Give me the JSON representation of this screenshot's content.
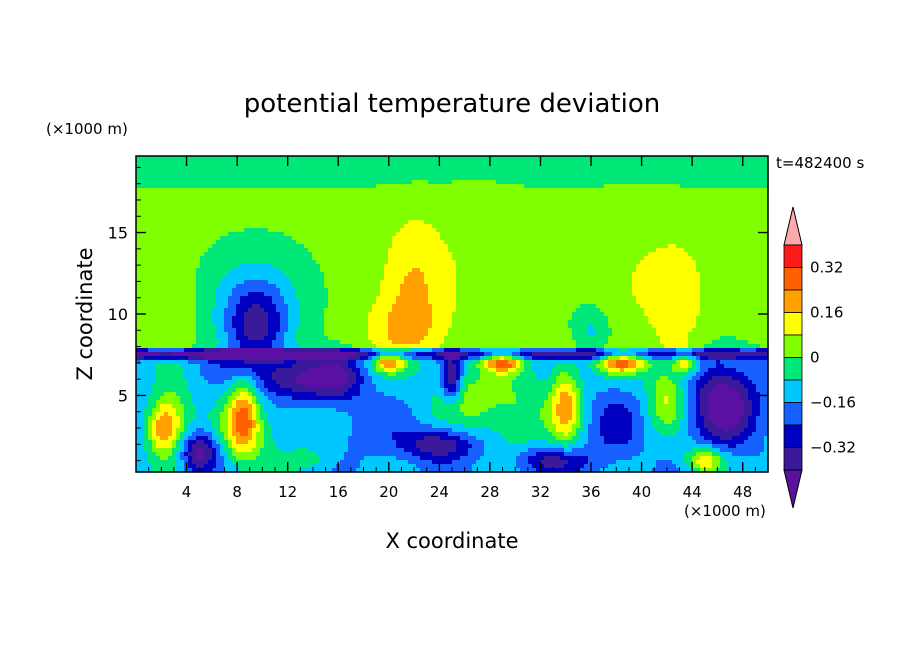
{
  "chart_data": {
    "type": "heatmap",
    "title": "potential temperature deviation",
    "xlabel": "X coordinate",
    "ylabel": "Z coordinate",
    "x_unit": "(×1000 m)",
    "y_unit": "(×1000 m)",
    "time_label": "t=482400 s",
    "xlim": [
      0,
      50
    ],
    "ylim": [
      0.3,
      19.7
    ],
    "x_ticks": [
      4,
      8,
      12,
      16,
      20,
      24,
      28,
      32,
      36,
      40,
      44,
      48
    ],
    "y_ticks": [
      5,
      10,
      15
    ],
    "colorbar": {
      "levels": [
        -0.4,
        -0.32,
        -0.24,
        -0.16,
        -0.08,
        0,
        0.08,
        0.16,
        0.24,
        0.32,
        0.4
      ],
      "tick_labels": [
        "0.32",
        "0.16",
        "0",
        "−0.16",
        "−0.32"
      ],
      "tick_values": [
        0.32,
        0.16,
        0,
        -0.16,
        -0.32
      ],
      "colors": [
        "#5a10a0",
        "#3a1a9a",
        "#0000c0",
        "#1560ff",
        "#00c8ff",
        "#00e878",
        "#80ff00",
        "#ffff00",
        "#ffa000",
        "#ff6000",
        "#ff1a1a",
        "#ffaaaa"
      ]
    },
    "inversion_layer_z": 7.5,
    "features": [
      {
        "x": 9.5,
        "z": 9,
        "value": -0.3,
        "sx": 2.5,
        "sz": 2.5
      },
      {
        "x": 9.5,
        "z": 11,
        "value": -0.14,
        "sx": 4,
        "sz": 3
      },
      {
        "x": 2.5,
        "z": 11,
        "value": 0.04,
        "sx": 2.5,
        "sz": 2
      },
      {
        "x": 2,
        "z": 3,
        "value": 0.28,
        "sx": 1.2,
        "sz": 1.6
      },
      {
        "x": 3,
        "z": 3.5,
        "value": 0.2,
        "sx": 1.5,
        "sz": 2.5
      },
      {
        "x": 8.5,
        "z": 4,
        "value": 0.3,
        "sx": 1.2,
        "sz": 2.2
      },
      {
        "x": 8.5,
        "z": 2.5,
        "value": 0.18,
        "sx": 2,
        "sz": 2
      },
      {
        "x": 5,
        "z": 1.5,
        "value": -0.3,
        "sx": 1.5,
        "sz": 1.2
      },
      {
        "x": 13,
        "z": 6,
        "value": -0.26,
        "sx": 3,
        "sz": 1.2
      },
      {
        "x": 16,
        "z": 6,
        "value": -0.2,
        "sx": 2,
        "sz": 1.5
      },
      {
        "x": 22,
        "z": 12,
        "value": 0.14,
        "sx": 2.5,
        "sz": 4
      },
      {
        "x": 21,
        "z": 9,
        "value": 0.12,
        "sx": 3,
        "sz": 2
      },
      {
        "x": 27,
        "z": 13,
        "value": 0.05,
        "sx": 3,
        "sz": 5
      },
      {
        "x": 40,
        "z": 12,
        "value": 0.06,
        "sx": 4,
        "sz": 4
      },
      {
        "x": 43,
        "z": 11,
        "value": 0.1,
        "sx": 2,
        "sz": 3
      },
      {
        "x": 36,
        "z": 9,
        "value": -0.12,
        "sx": 1.5,
        "sz": 1.5
      },
      {
        "x": 34,
        "z": 4.5,
        "value": 0.3,
        "sx": 1.2,
        "sz": 2.5
      },
      {
        "x": 30,
        "z": 4,
        "value": 0.16,
        "sx": 3,
        "sz": 2.5
      },
      {
        "x": 26,
        "z": 5,
        "value": 0.14,
        "sx": 2.5,
        "sz": 2
      },
      {
        "x": 24,
        "z": 2,
        "value": -0.26,
        "sx": 3,
        "sz": 1
      },
      {
        "x": 33,
        "z": 1,
        "value": -0.22,
        "sx": 3,
        "sz": 0.8
      },
      {
        "x": 38,
        "z": 3,
        "value": -0.12,
        "sx": 2,
        "sz": 2
      },
      {
        "x": 42,
        "z": 5,
        "value": 0.22,
        "sx": 1.5,
        "sz": 2
      },
      {
        "x": 46.5,
        "z": 4.5,
        "value": -0.34,
        "sx": 2.5,
        "sz": 2.5
      },
      {
        "x": 45,
        "z": 1,
        "value": 0.3,
        "sx": 1.5,
        "sz": 0.8
      },
      {
        "x": 20,
        "z": 7,
        "value": 0.3,
        "sx": 1.2,
        "sz": 0.6
      },
      {
        "x": 29,
        "z": 7,
        "value": 0.36,
        "sx": 1.5,
        "sz": 0.6
      },
      {
        "x": 38.5,
        "z": 7,
        "value": 0.38,
        "sx": 2,
        "sz": 0.7
      },
      {
        "x": 43.5,
        "z": 7,
        "value": 0.3,
        "sx": 1,
        "sz": 0.7
      },
      {
        "x": 25,
        "z": 6,
        "value": -0.3,
        "sx": 0.8,
        "sz": 1.5
      },
      {
        "x": 12,
        "z": 3,
        "value": 0.05,
        "sx": 3,
        "sz": 2
      },
      {
        "x": 18,
        "z": 3,
        "value": -0.05,
        "sx": 3,
        "sz": 2
      },
      {
        "x": 14,
        "z": 1,
        "value": 0.08,
        "sx": 2,
        "sz": 0.8
      }
    ]
  }
}
